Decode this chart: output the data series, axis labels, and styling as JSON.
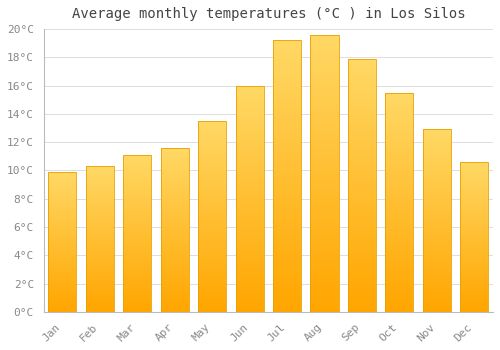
{
  "title": "Average monthly temperatures (°C ) in Los Silos",
  "months": [
    "Jan",
    "Feb",
    "Mar",
    "Apr",
    "May",
    "Jun",
    "Jul",
    "Aug",
    "Sep",
    "Oct",
    "Nov",
    "Dec"
  ],
  "temperatures": [
    9.9,
    10.3,
    11.1,
    11.6,
    13.5,
    16.0,
    19.2,
    19.6,
    17.9,
    15.5,
    12.9,
    10.6
  ],
  "bar_color_bottom": "#FFA500",
  "bar_color_top": "#FFD966",
  "bar_edge_color": "#E8A000",
  "background_color": "#FFFFFF",
  "plot_bg_color": "#FFFFFF",
  "grid_color": "#DDDDDD",
  "ylim": [
    0,
    20
  ],
  "ytick_step": 2,
  "title_fontsize": 10,
  "tick_fontsize": 8,
  "tick_color": "#888888",
  "font_family": "monospace"
}
